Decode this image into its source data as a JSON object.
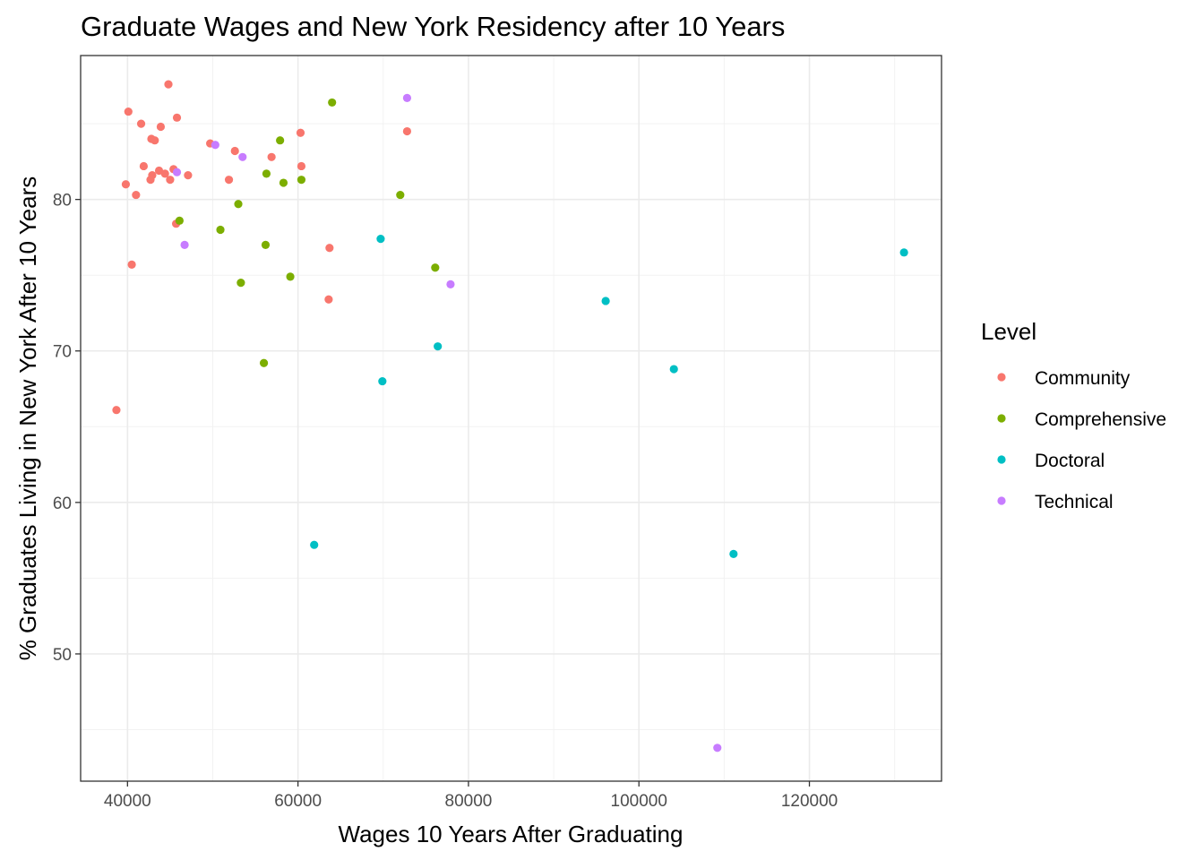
{
  "chart_data": {
    "type": "scatter",
    "title": "Graduate Wages and New York Residency after 10 Years",
    "xlabel": "Wages 10 Years After Graduating",
    "ylabel": "% Graduates Living in New York After 10 Years",
    "xlim": [
      34500,
      135500
    ],
    "ylim": [
      41.6,
      89.5
    ],
    "x_ticks": [
      40000,
      60000,
      80000,
      100000,
      120000
    ],
    "y_ticks": [
      50,
      60,
      70,
      80
    ],
    "grid": true,
    "legend_position": "right",
    "legend_title": "Level",
    "series": [
      {
        "name": "Community",
        "color": "#F8766D",
        "points": [
          [
            38700,
            66.1
          ],
          [
            39800,
            81.0
          ],
          [
            40100,
            85.8
          ],
          [
            40500,
            75.7
          ],
          [
            41000,
            80.3
          ],
          [
            41600,
            85.0
          ],
          [
            41900,
            82.2
          ],
          [
            42700,
            81.3
          ],
          [
            42800,
            84.0
          ],
          [
            42900,
            81.6
          ],
          [
            43200,
            83.9
          ],
          [
            43700,
            81.9
          ],
          [
            43900,
            84.8
          ],
          [
            44400,
            81.7
          ],
          [
            44800,
            87.6
          ],
          [
            45000,
            81.3
          ],
          [
            45400,
            82.0
          ],
          [
            45700,
            78.4
          ],
          [
            45800,
            85.4
          ],
          [
            47100,
            81.6
          ],
          [
            49700,
            83.7
          ],
          [
            51900,
            81.3
          ],
          [
            52600,
            83.2
          ],
          [
            56900,
            82.8
          ],
          [
            60300,
            84.4
          ],
          [
            60400,
            82.2
          ],
          [
            63600,
            73.4
          ],
          [
            63700,
            76.8
          ],
          [
            72800,
            84.5
          ]
        ]
      },
      {
        "name": "Comprehensive",
        "color": "#7CAE00",
        "points": [
          [
            46100,
            78.6
          ],
          [
            50900,
            78.0
          ],
          [
            53000,
            79.7
          ],
          [
            53300,
            74.5
          ],
          [
            56000,
            69.2
          ],
          [
            56200,
            77.0
          ],
          [
            56300,
            81.7
          ],
          [
            57900,
            83.9
          ],
          [
            58300,
            81.1
          ],
          [
            59100,
            74.9
          ],
          [
            60400,
            81.3
          ],
          [
            64000,
            86.4
          ],
          [
            72000,
            80.3
          ],
          [
            76100,
            75.5
          ]
        ]
      },
      {
        "name": "Doctoral",
        "color": "#00BFC4",
        "points": [
          [
            61900,
            57.2
          ],
          [
            69700,
            77.4
          ],
          [
            69900,
            68.0
          ],
          [
            76400,
            70.3
          ],
          [
            96100,
            73.3
          ],
          [
            104100,
            68.8
          ],
          [
            111100,
            56.6
          ],
          [
            131100,
            76.5
          ]
        ]
      },
      {
        "name": "Technical",
        "color": "#C77CFF",
        "points": [
          [
            45800,
            81.8
          ],
          [
            46700,
            77.0
          ],
          [
            50300,
            83.6
          ],
          [
            53500,
            82.8
          ],
          [
            72800,
            86.7
          ],
          [
            77900,
            74.4
          ],
          [
            109200,
            43.8
          ]
        ]
      }
    ]
  }
}
